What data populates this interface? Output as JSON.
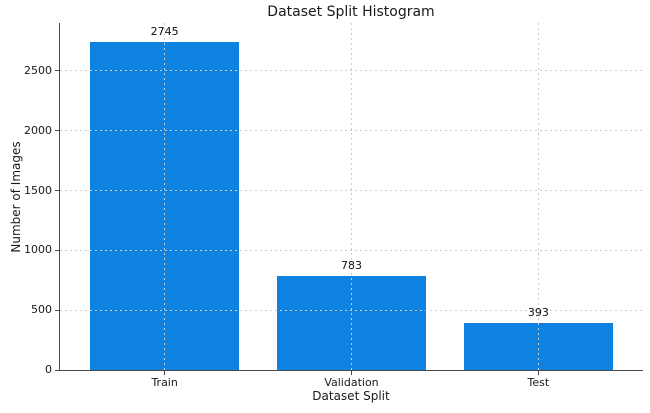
{
  "chart_data": {
    "type": "bar",
    "title": "Dataset Split Histogram",
    "xlabel": "Dataset Split",
    "ylabel": "Number of Images",
    "categories": [
      "Train",
      "Validation",
      "Test"
    ],
    "values": [
      2745,
      783,
      393
    ],
    "value_labels": [
      "2745",
      "783",
      "393"
    ],
    "yticks": [
      0,
      500,
      1000,
      1500,
      2000,
      2500
    ],
    "ylim": [
      0,
      2900
    ],
    "bar_width_fraction": 0.8,
    "grid": "dotted, drawn above bars, horizontal and vertical",
    "legend_position": "none",
    "bar_color": "#0d82e1",
    "grid_color": "#cccccc",
    "axis_color": "#4a4a4a",
    "text_color": "#1a1a1a"
  }
}
